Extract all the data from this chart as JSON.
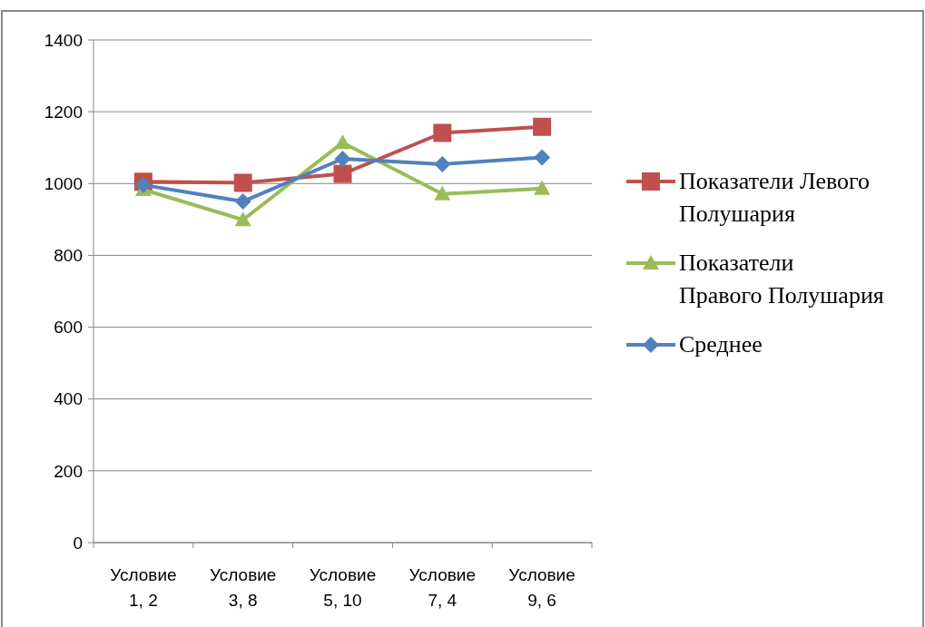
{
  "chart_data": {
    "type": "line",
    "categories": [
      "Условие 1, 2",
      "Условие 3, 8",
      "Условие 5, 10",
      "Условие 7, 4",
      "Условие 9, 6"
    ],
    "series": [
      {
        "name": "Показатели Левого Полушария",
        "color": "#c0504d",
        "marker": "square",
        "values": [
          1005,
          1002,
          1027,
          1141,
          1158
        ]
      },
      {
        "name": "Показатели Правого Полушария",
        "color": "#9bbb59",
        "marker": "triangle",
        "values": [
          983,
          899,
          1114,
          971,
          986
        ]
      },
      {
        "name": "Среднее",
        "color": "#4f81bd",
        "marker": "diamond",
        "values": [
          996,
          950,
          1069,
          1054,
          1073
        ]
      }
    ],
    "ylim": [
      0,
      1400
    ],
    "yticks": [
      0,
      200,
      400,
      600,
      800,
      1000,
      1200,
      1400
    ],
    "grid": "y",
    "legend": "right"
  }
}
